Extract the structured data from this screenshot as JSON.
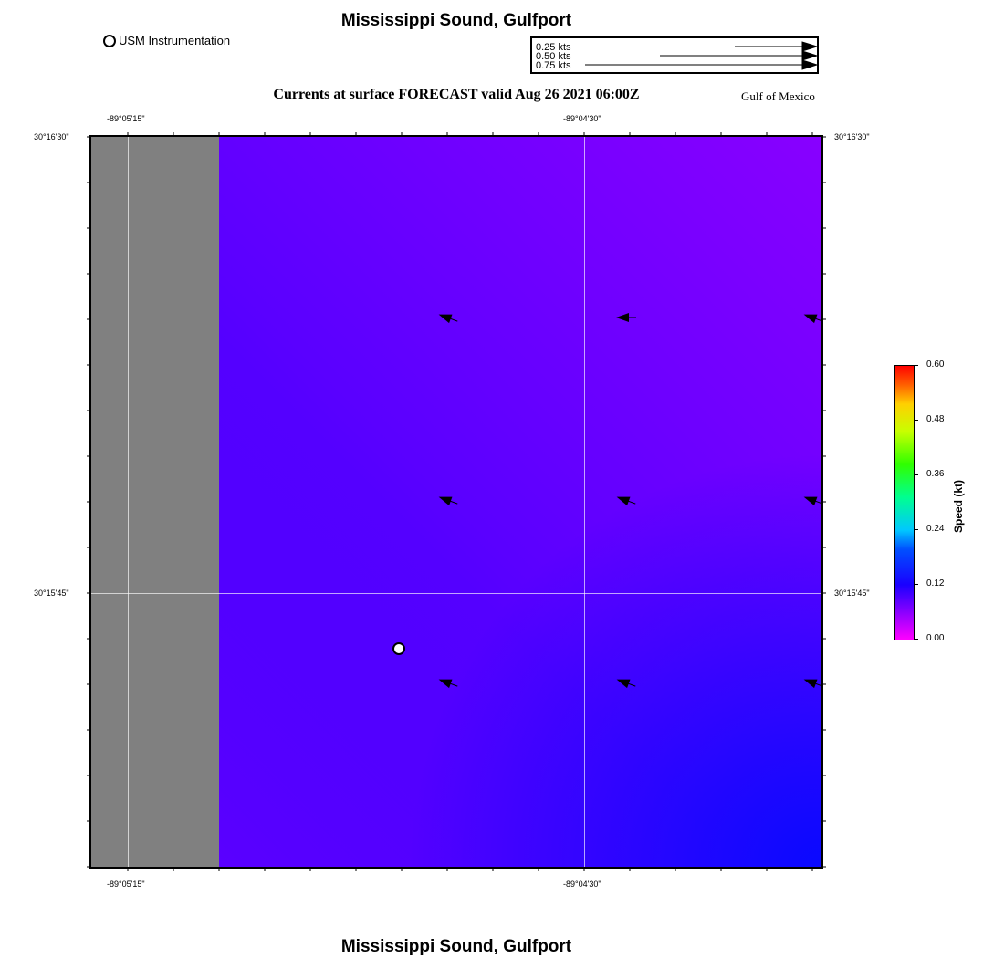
{
  "title": "Mississippi Sound, Gulfport",
  "bottom_title": "Mississippi Sound, Gulfport",
  "subtitle": "Currents at surface FORECAST valid Aug 26 2021 06:00Z",
  "region_label": "Gulf of Mexico",
  "legend": {
    "marker_label": "USM Instrumentation"
  },
  "vector_legend": {
    "labels": [
      "0.25 kts",
      "0.50 kts",
      "0.75 kts"
    ]
  },
  "axes": {
    "top_x_labels": [
      "-89°05'15\"",
      "-89°04'30\""
    ],
    "bottom_x_labels": [
      "-89°05'15\"",
      "-89°04'30\""
    ],
    "left_y_labels": [
      "30°16'30\"",
      "30°15'45\""
    ],
    "right_y_labels": [
      "30°16'30\"",
      "30°15'45\""
    ]
  },
  "colorbar": {
    "title": "Speed (kt)",
    "ticks": [
      "0.00",
      "0.12",
      "0.24",
      "0.36",
      "0.48",
      "0.60"
    ],
    "range": [
      0.0,
      0.6
    ]
  },
  "colors": {
    "land": "#808080",
    "water_low": "#9a00ff",
    "water_high": "#0010ff",
    "arrow": "#000000"
  },
  "vectors": [
    {
      "lon_index": 0,
      "lat_index": 0,
      "direction": "northwest"
    },
    {
      "lon_index": 1,
      "lat_index": 0,
      "direction": "west"
    },
    {
      "lon_index": 2,
      "lat_index": 0,
      "direction": "northwest"
    },
    {
      "lon_index": 0,
      "lat_index": 1,
      "direction": "northwest"
    },
    {
      "lon_index": 1,
      "lat_index": 1,
      "direction": "northwest"
    },
    {
      "lon_index": 2,
      "lat_index": 1,
      "direction": "northwest"
    },
    {
      "lon_index": 0,
      "lat_index": 2,
      "direction": "northwest"
    },
    {
      "lon_index": 1,
      "lat_index": 2,
      "direction": "northwest"
    },
    {
      "lon_index": 2,
      "lat_index": 2,
      "direction": "northwest"
    }
  ]
}
